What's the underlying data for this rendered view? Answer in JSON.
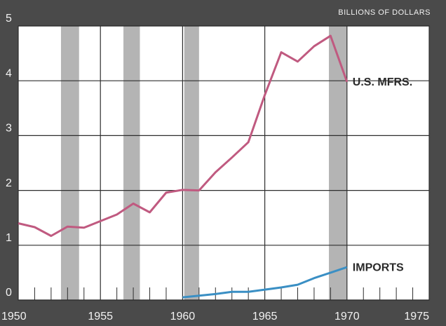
{
  "chart_data": {
    "type": "line",
    "y_axis_label": "BILLIONS OF DOLLARS",
    "x": [
      1950,
      1951,
      1952,
      1953,
      1954,
      1955,
      1956,
      1957,
      1958,
      1959,
      1960,
      1961,
      1962,
      1963,
      1964,
      1965,
      1966,
      1967,
      1968,
      1969,
      1970
    ],
    "series": [
      {
        "name": "U.S. MFRS.",
        "color": "#c05a80",
        "values": [
          1.4,
          1.33,
          1.17,
          1.34,
          1.32,
          1.44,
          1.56,
          1.76,
          1.6,
          1.96,
          2.01,
          2.0,
          2.33,
          2.6,
          2.88,
          3.74,
          4.52,
          4.35,
          4.63,
          4.82,
          3.98
        ]
      },
      {
        "name": "IMPORTS",
        "color": "#3a8fc4",
        "values": [
          null,
          null,
          null,
          null,
          null,
          null,
          null,
          null,
          null,
          null,
          0.05,
          0.08,
          0.11,
          0.15,
          0.15,
          0.19,
          0.23,
          0.28,
          0.4,
          0.5,
          0.6
        ]
      }
    ],
    "shaded_periods": [
      [
        1952.6,
        1953.7
      ],
      [
        1956.4,
        1957.4
      ],
      [
        1960.1,
        1961.0
      ],
      [
        1968.9,
        1970.0
      ]
    ],
    "shade_color": "#b4b4b4",
    "xlim": [
      1950,
      1975
    ],
    "xticks": [
      1950,
      1955,
      1960,
      1965,
      1970,
      1975
    ],
    "xminorticks": [
      1951,
      1952,
      1953,
      1954,
      1956,
      1957,
      1958,
      1959,
      1961,
      1962,
      1963,
      1964,
      1966,
      1967,
      1968,
      1969,
      1971,
      1972,
      1973,
      1974
    ],
    "ylim": [
      0,
      5
    ],
    "yticks": [
      0,
      1,
      2,
      3,
      4,
      5
    ],
    "grid": true
  }
}
